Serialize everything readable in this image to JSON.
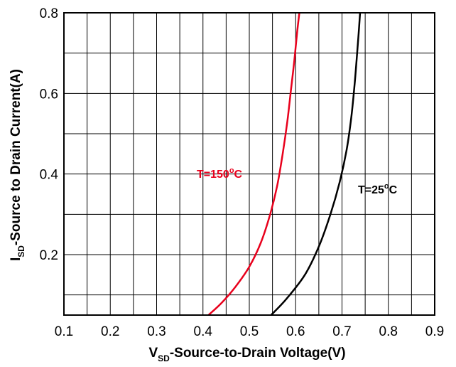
{
  "chart_data": {
    "type": "line",
    "xlabel": {
      "main": "V",
      "sub": "SD",
      "rest": "-Source-to-Drain Voltage(V)"
    },
    "ylabel": {
      "main": "I",
      "sub": "SD",
      "rest": "-Source to Drain Current(A)"
    },
    "xlim": [
      0.1,
      0.9
    ],
    "ylim": [
      0.05,
      0.8
    ],
    "x_ticks": [
      0.1,
      0.2,
      0.3,
      0.4,
      0.5,
      0.6,
      0.7,
      0.8,
      0.9
    ],
    "y_ticks": [
      0.2,
      0.4,
      0.6,
      0.8
    ],
    "x_tick_labels": [
      "0.1",
      "0.2",
      "0.3",
      "0.4",
      "0.5",
      "0.6",
      "0.7",
      "0.8",
      "0.9"
    ],
    "y_tick_labels": [
      "0.2",
      "0.4",
      "0.6",
      "0.8"
    ],
    "x_grid": [
      0.15,
      0.2,
      0.25,
      0.3,
      0.35,
      0.4,
      0.45,
      0.5,
      0.55,
      0.6,
      0.65,
      0.7,
      0.75,
      0.8,
      0.85
    ],
    "y_grid": [
      0.1,
      0.2,
      0.3,
      0.4,
      0.5,
      0.6,
      0.7
    ],
    "grid": true,
    "series": [
      {
        "name": "T=150°C",
        "label": {
          "prefix": "T=150",
          "sup": "o",
          "suffix": "C"
        },
        "color": "#e8001c",
        "x": [
          0.412,
          0.44,
          0.47,
          0.5,
          0.525,
          0.545,
          0.56,
          0.572,
          0.582,
          0.59,
          0.597,
          0.603,
          0.608
        ],
        "y": [
          0.05,
          0.08,
          0.12,
          0.17,
          0.23,
          0.3,
          0.37,
          0.45,
          0.53,
          0.61,
          0.68,
          0.75,
          0.8
        ]
      },
      {
        "name": "T=25°C",
        "label": {
          "prefix": "T=25",
          "sup": "o",
          "suffix": "C"
        },
        "color": "#000000",
        "x": [
          0.547,
          0.58,
          0.62,
          0.65,
          0.675,
          0.695,
          0.71,
          0.72,
          0.727,
          0.732,
          0.736,
          0.739
        ],
        "y": [
          0.05,
          0.09,
          0.15,
          0.22,
          0.3,
          0.38,
          0.46,
          0.54,
          0.62,
          0.69,
          0.75,
          0.8
        ]
      }
    ]
  }
}
